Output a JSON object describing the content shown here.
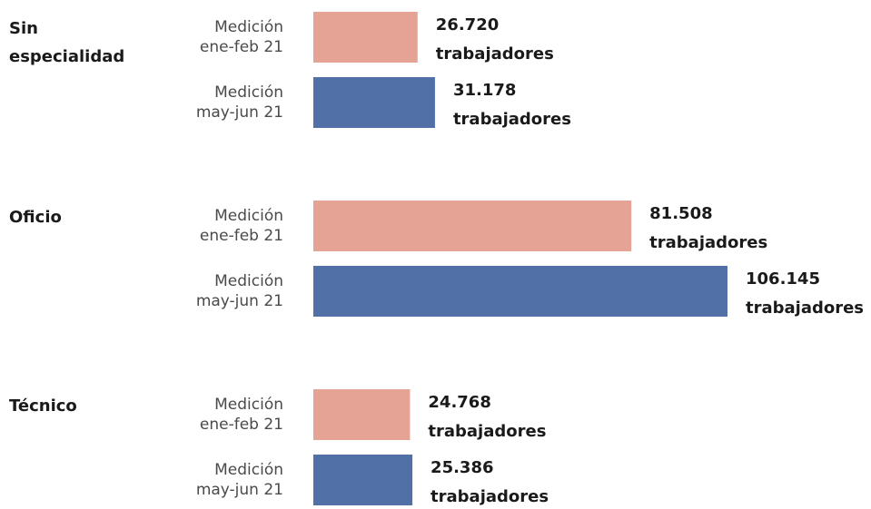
{
  "chart_data": {
    "type": "bar",
    "orientation": "horizontal",
    "categories": [
      "Sin especialidad",
      "Oficio",
      "Técnico"
    ],
    "series": [
      {
        "name": "Medición ene-feb 21",
        "color": "#e5a396",
        "values": [
          26720,
          81508,
          24768
        ],
        "value_labels": [
          "26.720 trabajadores",
          "81.508 trabajadores",
          "24.768 trabajadores"
        ]
      },
      {
        "name": "Medición may-jun 21",
        "color": "#5270a8",
        "values": [
          31178,
          106145,
          25386
        ],
        "value_labels": [
          "31.178 trabajadores",
          "106.145 trabajadores",
          "25.386 trabajadores"
        ]
      }
    ]
  }
}
